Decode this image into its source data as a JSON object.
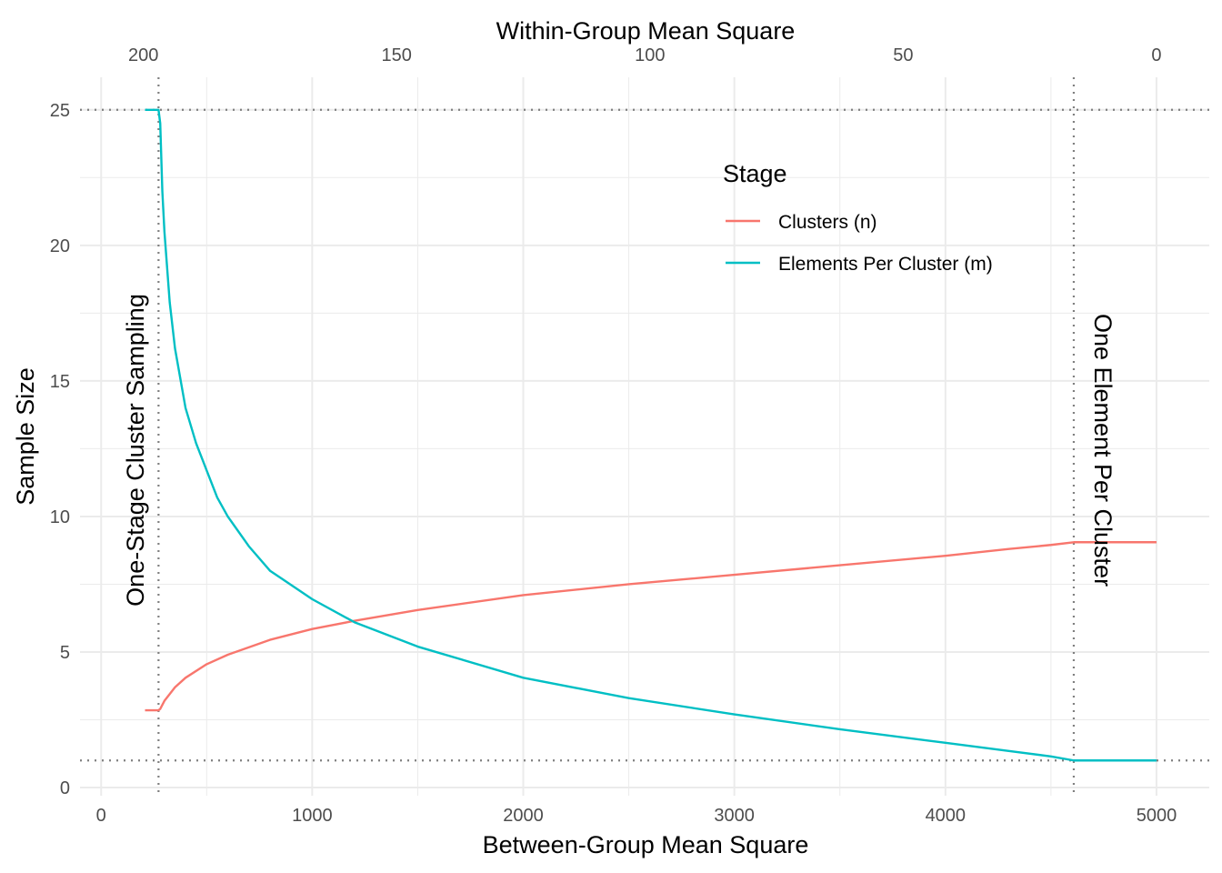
{
  "chart_data": {
    "type": "line",
    "xlabel": "Between-Group Mean Square",
    "x2label": "Within-Group Mean Square",
    "ylabel": "Sample Size",
    "xlim": [
      -100,
      5250
    ],
    "ylim": [
      -0.3,
      26.2
    ],
    "x_ticks": [
      0,
      1000,
      2000,
      3000,
      4000,
      5000
    ],
    "x_tick_labels": [
      "0",
      "1000",
      "2000",
      "3000",
      "4000",
      "5000"
    ],
    "x2_ticks": [
      200,
      150,
      100,
      50,
      0
    ],
    "x2_tick_labels": [
      "200",
      "150",
      "100",
      "50",
      "0"
    ],
    "x2_mapping": "within = (5000 - between) / 24",
    "y_ticks": [
      0,
      5,
      10,
      15,
      20,
      25
    ],
    "y_tick_labels": [
      "0",
      "5",
      "10",
      "15",
      "20",
      "25"
    ],
    "grid": true,
    "legend_placement": "top-right inside",
    "legend_title": "Stage",
    "series": [
      {
        "name": "Clusters (n)",
        "color": "#F8766D",
        "x": [
          208,
          272,
          280,
          300,
          350,
          400,
          500,
          600,
          800,
          1000,
          1200,
          1500,
          2000,
          2500,
          3000,
          3500,
          4000,
          4300,
          4500,
          4608,
          4800,
          5000
        ],
        "y": [
          2.85,
          2.85,
          2.9,
          3.2,
          3.7,
          4.05,
          4.55,
          4.9,
          5.45,
          5.85,
          6.15,
          6.55,
          7.1,
          7.5,
          7.85,
          8.2,
          8.55,
          8.8,
          8.95,
          9.05,
          9.05,
          9.05
        ]
      },
      {
        "name": "Elements Per Cluster (m)",
        "color": "#00BFC4",
        "x": [
          208,
          272,
          280,
          290,
          300,
          325,
          350,
          400,
          450,
          500,
          550,
          600,
          700,
          800,
          1000,
          1200,
          1500,
          2000,
          2500,
          3000,
          3500,
          4000,
          4300,
          4500,
          4608,
          4800,
          5000
        ],
        "y": [
          25,
          25,
          24.5,
          22,
          20.5,
          17.9,
          16.2,
          14,
          12.7,
          11.7,
          10.7,
          10,
          8.9,
          8.0,
          6.95,
          6.1,
          5.2,
          4.05,
          3.3,
          2.7,
          2.15,
          1.65,
          1.35,
          1.15,
          1.0,
          1.0,
          1.0
        ]
      }
    ],
    "reference_lines": {
      "horizontal": [
        25,
        1
      ],
      "vertical": [
        272,
        4608
      ]
    },
    "annotations": [
      "One-Stage Cluster Sampling",
      "One Element Per Cluster"
    ]
  }
}
